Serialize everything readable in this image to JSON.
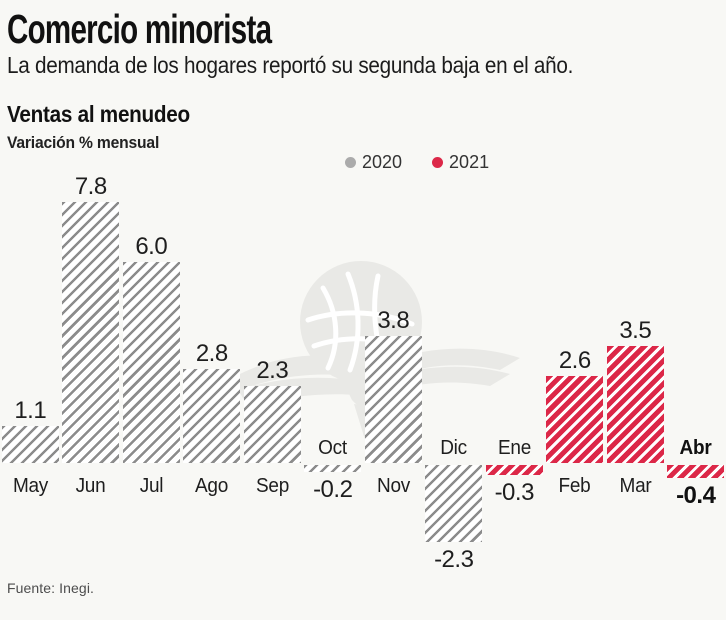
{
  "header": {
    "title": "Comercio minorista",
    "subtitle": "La demanda de los hogares reportó su segunda baja en el año."
  },
  "chart": {
    "title": "Ventas al menudeo",
    "subtitle": "Variación % mensual",
    "legend": [
      {
        "label": "2020",
        "color": "#ababab"
      },
      {
        "label": "2021",
        "color": "#dc2848"
      }
    ]
  },
  "chart_data": {
    "type": "bar",
    "title": "Ventas al menudeo",
    "subtitle": "Variación % mensual",
    "categories": [
      "May",
      "Jun",
      "Jul",
      "Ago",
      "Sep",
      "Oct",
      "Nov",
      "Dic",
      "Ene",
      "Feb",
      "Mar",
      "Abr"
    ],
    "series": [
      {
        "name": "2020",
        "color": "#8c8c8c",
        "pattern": "diagonal-hatch"
      },
      {
        "name": "2021",
        "color": "#dc2848",
        "pattern": "diagonal-hatch"
      }
    ],
    "points": [
      {
        "month": "May",
        "value": 1.1,
        "label": "1.1",
        "series": "2020",
        "bold": false
      },
      {
        "month": "Jun",
        "value": 7.8,
        "label": "7.8",
        "series": "2020",
        "bold": false
      },
      {
        "month": "Jul",
        "value": 6.0,
        "label": "6.0",
        "series": "2020",
        "bold": false
      },
      {
        "month": "Ago",
        "value": 2.8,
        "label": "2.8",
        "series": "2020",
        "bold": false
      },
      {
        "month": "Sep",
        "value": 2.3,
        "label": "2.3",
        "series": "2020",
        "bold": false
      },
      {
        "month": "Oct",
        "value": -0.2,
        "label": "-0.2",
        "series": "2020",
        "bold": false
      },
      {
        "month": "Nov",
        "value": 3.8,
        "label": "3.8",
        "series": "2020",
        "bold": false
      },
      {
        "month": "Dic",
        "value": -2.3,
        "label": "-2.3",
        "series": "2020",
        "bold": false
      },
      {
        "month": "Ene",
        "value": -0.3,
        "label": "-0.3",
        "series": "2021",
        "bold": false
      },
      {
        "month": "Feb",
        "value": 2.6,
        "label": "2.6",
        "series": "2021",
        "bold": false
      },
      {
        "month": "Mar",
        "value": 3.5,
        "label": "3.5",
        "series": "2021",
        "bold": false
      },
      {
        "month": "Abr",
        "value": -0.4,
        "label": "-0.4",
        "series": "2021",
        "bold": true
      }
    ],
    "ylim": [
      -2.3,
      7.8
    ],
    "grid": false,
    "legend_position": "top-center",
    "watermark": "el-economista-eagle-globe-logo"
  },
  "footer": {
    "source": "Fuente: Inegi."
  }
}
